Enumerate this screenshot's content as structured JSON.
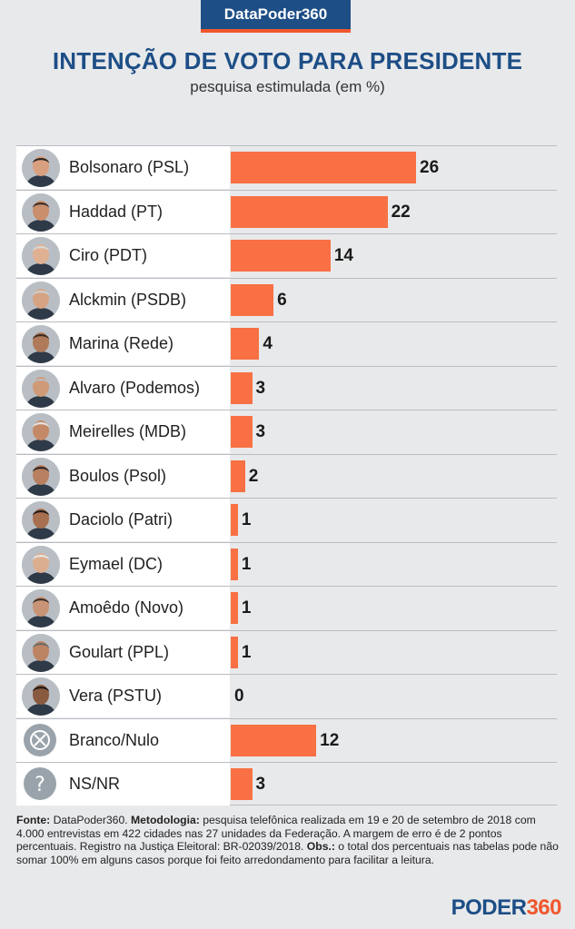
{
  "brand": "DataPoder360",
  "title": "INTENÇÃO DE VOTO PARA PRESIDENTE",
  "subtitle": "pesquisa estimulada (em %)",
  "colors": {
    "bar": "#f87043",
    "brand_blue": "#1d4e86",
    "accent": "#f0572d"
  },
  "chart_data": {
    "type": "bar",
    "orientation": "horizontal",
    "title": "INTENÇÃO DE VOTO PARA PRESIDENTE",
    "subtitle": "pesquisa estimulada (em %)",
    "categories": [
      "Bolsonaro (PSL)",
      "Haddad (PT)",
      "Ciro (PDT)",
      "Alckmin (PSDB)",
      "Marina (Rede)",
      "Alvaro (Podemos)",
      "Meirelles (MDB)",
      "Boulos (Psol)",
      "Daciolo (Patri)",
      "Eymael (DC)",
      "Amoêdo (Novo)",
      "Goulart  (PPL)",
      "Vera (PSTU)",
      "Branco/Nulo",
      "NS/NR"
    ],
    "values": [
      26,
      22,
      14,
      6,
      4,
      3,
      3,
      2,
      1,
      1,
      1,
      1,
      0,
      12,
      3
    ],
    "icons": [
      "photo",
      "photo",
      "photo",
      "photo",
      "photo",
      "photo",
      "photo",
      "photo",
      "photo",
      "photo",
      "photo",
      "photo",
      "photo",
      "cross-circle-icon",
      "question-circle-icon"
    ],
    "xlim": [
      0,
      26
    ],
    "grid": false
  },
  "footer": {
    "source_label": "Fonte:",
    "source": " DataPoder360.  ",
    "method_label": "Metodologia:",
    "method": " pesquisa telefônica realizada em 19 e 20 de setembro de 2018 com 4.000 entrevistas em 422 cidades nas 27 unidades da Federação. A margem de erro é de 2 pontos percentuais. Registro na Justiça Eleitoral: BR-02039/2018. ",
    "obs_label": "Obs.:",
    "obs": " o total dos percentuais nas tabelas pode não somar 100% em alguns casos porque foi feito arredondamento para facilitar a leitura."
  },
  "logo": {
    "main": "PODER",
    "accent": "360"
  }
}
